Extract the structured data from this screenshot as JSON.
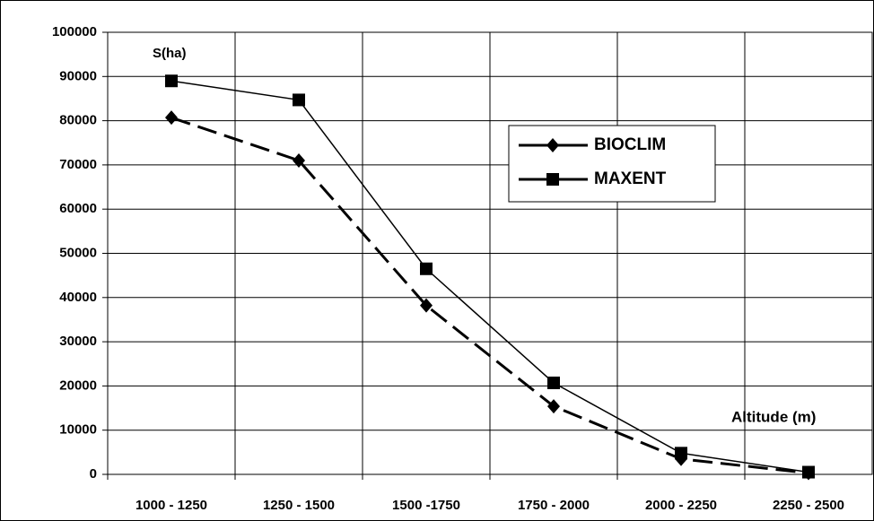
{
  "chart_data": {
    "type": "line",
    "y_label": "S(ha)",
    "x_label": "Altitude (m)",
    "categories": [
      "1000 - 1250",
      "1250 - 1500",
      "1500 -1750",
      "1750 - 2000",
      "2000 - 2250",
      "2250 - 2500"
    ],
    "series": [
      {
        "name": "BIOCLIM",
        "color": "#000000",
        "line_style": "dashed",
        "marker": "diamond",
        "values": [
          80700,
          71000,
          38200,
          15400,
          3500,
          300
        ]
      },
      {
        "name": "MAXENT",
        "color": "#000000",
        "line_style": "solid",
        "marker": "square",
        "values": [
          89000,
          84700,
          46500,
          20700,
          4800,
          500
        ]
      }
    ],
    "ylim": [
      0,
      100000
    ],
    "yticks": [
      0,
      10000,
      20000,
      30000,
      40000,
      50000,
      60000,
      70000,
      80000,
      90000,
      100000
    ],
    "grid": true
  }
}
